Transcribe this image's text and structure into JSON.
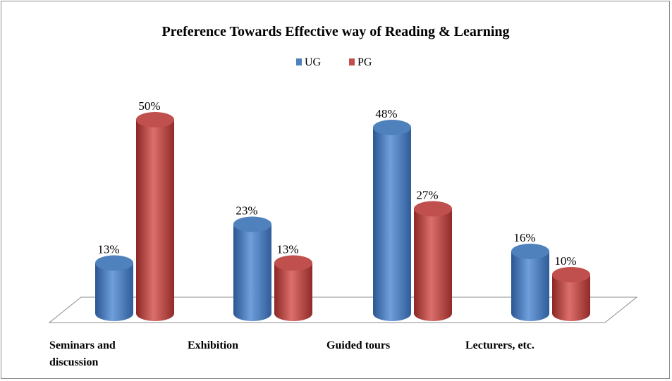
{
  "chart_data": {
    "type": "bar3d",
    "title": "Preference Towards Effective way of Reading & Learning",
    "categories": [
      "Seminars and discussion",
      "Exhibition",
      "Guided tours",
      "Lecturers, etc."
    ],
    "series": [
      {
        "name": "UG",
        "color": "#4f81bd",
        "values": [
          13,
          23,
          48,
          16
        ],
        "value_labels": [
          "13%",
          "23%",
          "48%",
          "16%"
        ]
      },
      {
        "name": "PG",
        "color": "#c0504d",
        "values": [
          50,
          13,
          27,
          10
        ],
        "value_labels": [
          "50%",
          "13%",
          "27%",
          "10%"
        ]
      }
    ],
    "legend": "top"
  }
}
